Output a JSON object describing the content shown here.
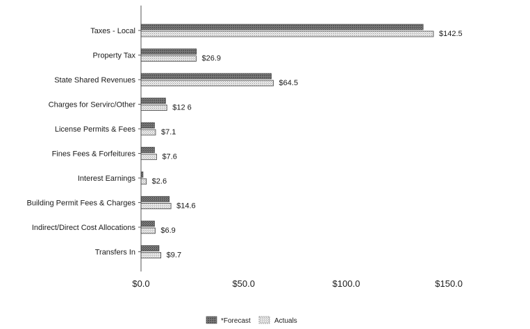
{
  "chart_data": {
    "type": "bar",
    "orientation": "horizontal",
    "categories": [
      "Taxes - Local",
      "Property Tax",
      "State Shared Revenues",
      "Charges for Servirc/Other",
      "License Permits & Fees",
      "Fines Fees & Forfeitures",
      "Interest Earnings",
      "Building Permit Fees & Charges",
      "Indirect/Direct Cost Allocations",
      "Transfers In"
    ],
    "series": [
      {
        "name": "*Forecast",
        "values": [
          137.5,
          27.0,
          63.5,
          12.0,
          6.6,
          6.6,
          1.0,
          13.8,
          6.6,
          8.8
        ]
      },
      {
        "name": "Actuals",
        "values": [
          142.5,
          26.9,
          64.5,
          12.6,
          7.1,
          7.6,
          2.6,
          14.6,
          6.9,
          9.7
        ]
      }
    ],
    "data_labels": [
      "$142.5",
      "$26.9",
      "$64.5",
      "$12 6",
      "$7.1",
      "$7.6",
      "$2.6",
      "$14.6",
      "$6.9",
      "$9.7"
    ],
    "x_ticks": [
      "$0.0",
      "$50.0",
      "$100.0",
      "$150.0"
    ],
    "xlim": [
      0,
      175
    ],
    "title": "",
    "xlabel": "",
    "ylabel": "",
    "grid": false,
    "legend_position": "bottom-center",
    "colors": {
      "forecast": "#6f6f6f",
      "actuals": "#dcdcdc",
      "axis": "#555555"
    }
  }
}
